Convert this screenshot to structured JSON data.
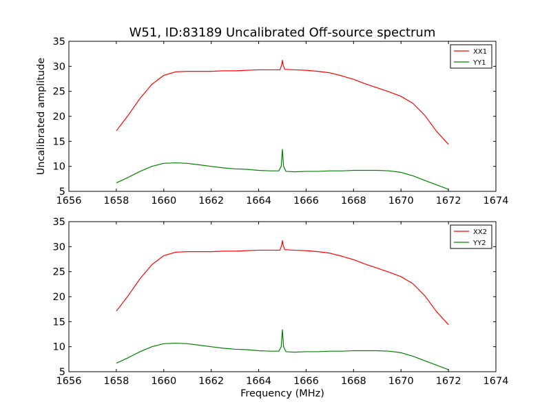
{
  "chart_data": {
    "title": "W51, ID:83189 Uncalibrated Off-source spectrum",
    "type": "line",
    "panels": [
      {
        "ylabel": "Uncalibrated amplitude",
        "xlabel": "",
        "xlim": [
          1656,
          1674
        ],
        "ylim": [
          5,
          35
        ],
        "xticks": [
          1656,
          1658,
          1660,
          1662,
          1664,
          1666,
          1668,
          1670,
          1672,
          1674
        ],
        "yticks": [
          5,
          10,
          15,
          20,
          25,
          30,
          35
        ],
        "legend": "top-right",
        "grid": false,
        "series": [
          {
            "name": "XX1",
            "color": "#ff0000",
            "points": [
              [
                1658.0,
                17.1
              ],
              [
                1658.5,
                20.2
              ],
              [
                1659.0,
                23.6
              ],
              [
                1659.5,
                26.4
              ],
              [
                1660.0,
                28.2
              ],
              [
                1660.5,
                28.9
              ],
              [
                1661.0,
                29.0
              ],
              [
                1661.5,
                29.0
              ],
              [
                1662.0,
                29.0
              ],
              [
                1662.5,
                29.1
              ],
              [
                1663.0,
                29.1
              ],
              [
                1663.5,
                29.2
              ],
              [
                1664.0,
                29.3
              ],
              [
                1664.5,
                29.3
              ],
              [
                1664.9,
                29.3
              ],
              [
                1664.97,
                30.3
              ],
              [
                1665.0,
                31.2
              ],
              [
                1665.03,
                30.3
              ],
              [
                1665.1,
                29.4
              ],
              [
                1665.5,
                29.3
              ],
              [
                1666.0,
                29.2
              ],
              [
                1666.5,
                29.0
              ],
              [
                1667.0,
                28.7
              ],
              [
                1667.5,
                28.1
              ],
              [
                1668.0,
                27.4
              ],
              [
                1668.5,
                26.5
              ],
              [
                1669.0,
                25.7
              ],
              [
                1669.5,
                24.9
              ],
              [
                1670.0,
                24.0
              ],
              [
                1670.5,
                22.6
              ],
              [
                1671.0,
                20.2
              ],
              [
                1671.5,
                17.0
              ],
              [
                1672.0,
                14.4
              ]
            ]
          },
          {
            "name": "YY1",
            "color": "#008000",
            "points": [
              [
                1658.0,
                6.7
              ],
              [
                1658.5,
                7.8
              ],
              [
                1659.0,
                9.0
              ],
              [
                1659.5,
                10.0
              ],
              [
                1660.0,
                10.6
              ],
              [
                1660.5,
                10.7
              ],
              [
                1661.0,
                10.6
              ],
              [
                1661.5,
                10.3
              ],
              [
                1662.0,
                10.0
              ],
              [
                1662.5,
                9.7
              ],
              [
                1663.0,
                9.5
              ],
              [
                1663.5,
                9.4
              ],
              [
                1664.0,
                9.2
              ],
              [
                1664.5,
                9.1
              ],
              [
                1664.85,
                9.1
              ],
              [
                1664.95,
                10.0
              ],
              [
                1665.0,
                13.4
              ],
              [
                1665.05,
                10.0
              ],
              [
                1665.15,
                9.0
              ],
              [
                1665.5,
                8.9
              ],
              [
                1666.0,
                9.0
              ],
              [
                1666.5,
                9.0
              ],
              [
                1667.0,
                9.1
              ],
              [
                1667.5,
                9.1
              ],
              [
                1668.0,
                9.2
              ],
              [
                1668.5,
                9.2
              ],
              [
                1669.0,
                9.2
              ],
              [
                1669.5,
                9.1
              ],
              [
                1670.0,
                8.8
              ],
              [
                1670.5,
                8.1
              ],
              [
                1671.0,
                7.2
              ],
              [
                1671.5,
                6.3
              ],
              [
                1672.0,
                5.4
              ]
            ]
          }
        ]
      },
      {
        "ylabel": "",
        "xlabel": "Frequency (MHz)",
        "xlim": [
          1656,
          1674
        ],
        "ylim": [
          5,
          35
        ],
        "xticks": [
          1656,
          1658,
          1660,
          1662,
          1664,
          1666,
          1668,
          1670,
          1672,
          1674
        ],
        "yticks": [
          5,
          10,
          15,
          20,
          25,
          30,
          35
        ],
        "legend": "top-right",
        "grid": false,
        "series": [
          {
            "name": "XX2",
            "color": "#ff0000",
            "points": [
              [
                1658.0,
                17.1
              ],
              [
                1658.5,
                20.2
              ],
              [
                1659.0,
                23.6
              ],
              [
                1659.5,
                26.4
              ],
              [
                1660.0,
                28.2
              ],
              [
                1660.5,
                28.9
              ],
              [
                1661.0,
                29.0
              ],
              [
                1661.5,
                29.0
              ],
              [
                1662.0,
                29.0
              ],
              [
                1662.5,
                29.1
              ],
              [
                1663.0,
                29.1
              ],
              [
                1663.5,
                29.2
              ],
              [
                1664.0,
                29.3
              ],
              [
                1664.5,
                29.3
              ],
              [
                1664.9,
                29.3
              ],
              [
                1664.97,
                30.3
              ],
              [
                1665.0,
                31.2
              ],
              [
                1665.03,
                30.3
              ],
              [
                1665.1,
                29.4
              ],
              [
                1665.5,
                29.3
              ],
              [
                1666.0,
                29.2
              ],
              [
                1666.5,
                29.0
              ],
              [
                1667.0,
                28.7
              ],
              [
                1667.5,
                28.1
              ],
              [
                1668.0,
                27.4
              ],
              [
                1668.5,
                26.5
              ],
              [
                1669.0,
                25.7
              ],
              [
                1669.5,
                24.9
              ],
              [
                1670.0,
                24.0
              ],
              [
                1670.5,
                22.6
              ],
              [
                1671.0,
                20.2
              ],
              [
                1671.5,
                17.0
              ],
              [
                1672.0,
                14.4
              ]
            ]
          },
          {
            "name": "YY2",
            "color": "#008000",
            "points": [
              [
                1658.0,
                6.7
              ],
              [
                1658.5,
                7.8
              ],
              [
                1659.0,
                9.0
              ],
              [
                1659.5,
                10.0
              ],
              [
                1660.0,
                10.6
              ],
              [
                1660.5,
                10.7
              ],
              [
                1661.0,
                10.6
              ],
              [
                1661.5,
                10.3
              ],
              [
                1662.0,
                10.0
              ],
              [
                1662.5,
                9.7
              ],
              [
                1663.0,
                9.5
              ],
              [
                1663.5,
                9.4
              ],
              [
                1664.0,
                9.2
              ],
              [
                1664.5,
                9.1
              ],
              [
                1664.85,
                9.1
              ],
              [
                1664.95,
                10.0
              ],
              [
                1665.0,
                13.4
              ],
              [
                1665.05,
                10.0
              ],
              [
                1665.15,
                9.0
              ],
              [
                1665.5,
                8.9
              ],
              [
                1666.0,
                9.0
              ],
              [
                1666.5,
                9.0
              ],
              [
                1667.0,
                9.1
              ],
              [
                1667.5,
                9.1
              ],
              [
                1668.0,
                9.2
              ],
              [
                1668.5,
                9.2
              ],
              [
                1669.0,
                9.2
              ],
              [
                1669.5,
                9.1
              ],
              [
                1670.0,
                8.8
              ],
              [
                1670.5,
                8.1
              ],
              [
                1671.0,
                7.2
              ],
              [
                1671.5,
                6.3
              ],
              [
                1672.0,
                5.4
              ]
            ]
          }
        ]
      }
    ]
  }
}
